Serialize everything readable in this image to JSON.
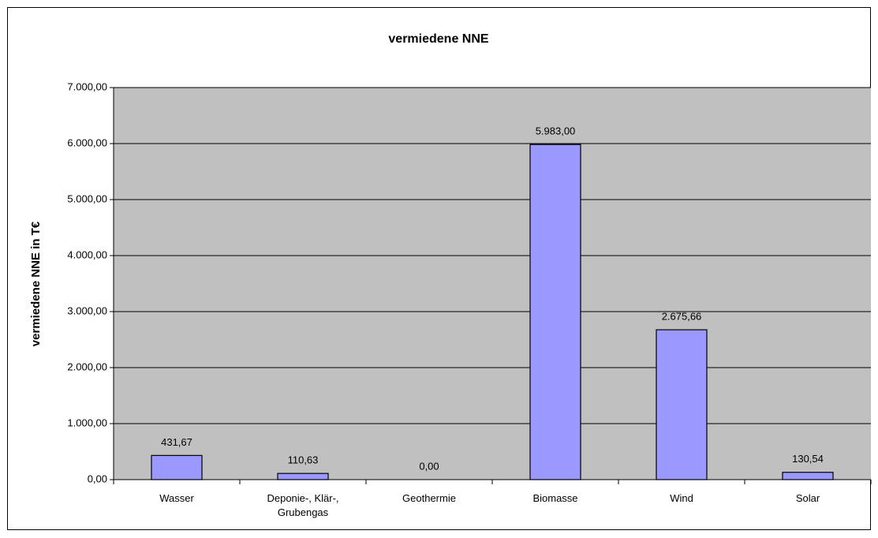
{
  "chart_data": {
    "type": "bar",
    "title": "vermiedene NNE",
    "y_label": "vermiedene NNE in T€",
    "categories": [
      "Wasser",
      "Deponie-, Klär-, Grubengas",
      "Geothermie",
      "Biomasse",
      "Wind",
      "Solar"
    ],
    "values": [
      431.67,
      110.63,
      0,
      5983,
      2675.66,
      130.54
    ],
    "value_labels": [
      "431,67",
      "110,63",
      "0,00",
      "5.983,00",
      "2.675,66",
      "130,54"
    ],
    "color": "#9999ff",
    "ylim": [
      0,
      7000
    ],
    "yticks": [
      {
        "value": 0,
        "label": "0,00"
      },
      {
        "value": 1000,
        "label": "1.000,00"
      },
      {
        "value": 2000,
        "label": "2.000,00"
      },
      {
        "value": 3000,
        "label": "3.000,00"
      },
      {
        "value": 4000,
        "label": "4.000,00"
      },
      {
        "value": 5000,
        "label": "5.000,00"
      },
      {
        "value": 6000,
        "label": "6.000,00"
      },
      {
        "value": 7000,
        "label": "7.000,00"
      }
    ],
    "grid": true
  }
}
